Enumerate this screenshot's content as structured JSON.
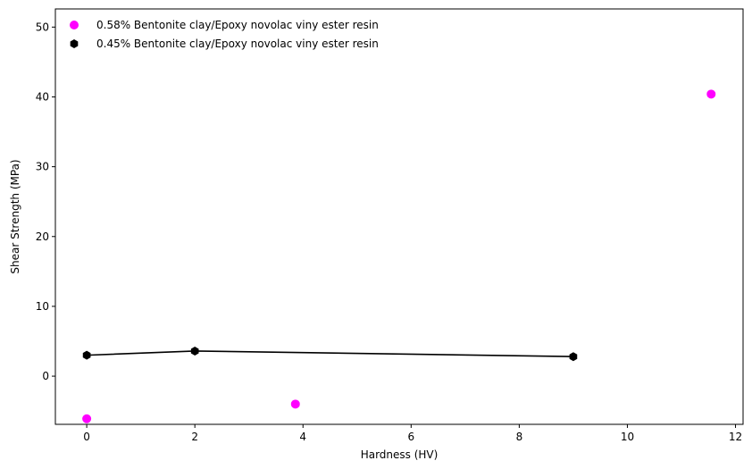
{
  "chart_data": {
    "type": "scatter",
    "xlabel": "Hardness (HV)",
    "ylabel": "Shear Strength (MPa)",
    "xlim": [
      -0.58,
      12.14
    ],
    "ylim": [
      -6.9,
      52.6
    ],
    "xticks": [
      0,
      2,
      4,
      6,
      8,
      10,
      12
    ],
    "yticks": [
      0,
      10,
      20,
      30,
      40,
      50
    ],
    "grid": false,
    "legend_position": "top-left",
    "series": [
      {
        "name": "0.58% Bentonite clay/Epoxy novolac viny ester resin",
        "color": "#ff00ff",
        "marker": "circle",
        "line": false,
        "points": [
          [
            0.0,
            -6.1
          ],
          [
            3.86,
            -4.0
          ],
          [
            11.55,
            40.4
          ]
        ]
      },
      {
        "name": "0.45% Bentonite clay/Epoxy novolac viny ester resin",
        "color": "#000000",
        "marker": "hexagon",
        "line": true,
        "points": [
          [
            0.0,
            3.0
          ],
          [
            2.0,
            3.6
          ],
          [
            9.0,
            2.8
          ]
        ]
      }
    ]
  }
}
